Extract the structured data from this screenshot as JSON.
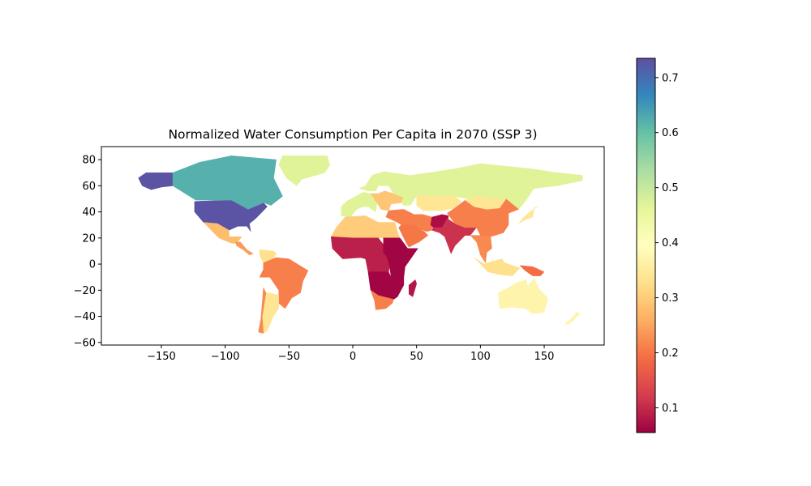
{
  "chart_data": {
    "type": "choropleth",
    "title": "Normalized Water Consumption Per Capita in 2070 (SSP 3)",
    "xlim": [
      -197,
      197
    ],
    "ylim": [
      -62,
      90
    ],
    "x_ticks": [
      -150,
      -100,
      -50,
      0,
      50,
      100,
      150
    ],
    "y_ticks": [
      80,
      60,
      40,
      20,
      0,
      -20,
      -40,
      -60
    ],
    "colormap": "Spectral",
    "colorbar": {
      "range": [
        0.055,
        0.735
      ],
      "ticks": [
        0.1,
        0.2,
        0.3,
        0.4,
        0.5,
        0.6,
        0.7
      ],
      "stops": [
        "#9e0142",
        "#d53e4f",
        "#f46d43",
        "#fdae61",
        "#fee08b",
        "#ffffbf",
        "#e6f598",
        "#abdda4",
        "#66c2a5",
        "#3288bd",
        "#5e4fa2"
      ]
    },
    "regions": [
      {
        "name": "Alaska",
        "value": 0.73
      },
      {
        "name": "Contiguous USA",
        "value": 0.73
      },
      {
        "name": "Canada",
        "value": 0.62
      },
      {
        "name": "Greenland",
        "value": 0.47
      },
      {
        "name": "Mexico",
        "value": 0.28
      },
      {
        "name": "Central America",
        "value": 0.24
      },
      {
        "name": "Venezuela",
        "value": 0.33
      },
      {
        "name": "Brazil",
        "value": 0.21
      },
      {
        "name": "Argentina",
        "value": 0.34
      },
      {
        "name": "Chile",
        "value": 0.22
      },
      {
        "name": "Western Europe",
        "value": 0.47
      },
      {
        "name": "Scandinavia",
        "value": 0.47
      },
      {
        "name": "Eastern Europe",
        "value": 0.29
      },
      {
        "name": "Russia",
        "value": 0.47
      },
      {
        "name": "Kazakhstan",
        "value": 0.34
      },
      {
        "name": "North Africa",
        "value": 0.3
      },
      {
        "name": "West Africa",
        "value": 0.09
      },
      {
        "name": "East Africa",
        "value": 0.06
      },
      {
        "name": "Southern Africa",
        "value": 0.06
      },
      {
        "name": "South Africa",
        "value": 0.21
      },
      {
        "name": "Madagascar",
        "value": 0.08
      },
      {
        "name": "Middle East",
        "value": 0.21
      },
      {
        "name": "Saudi Arabia",
        "value": 0.2
      },
      {
        "name": "Afghanistan",
        "value": 0.07
      },
      {
        "name": "India",
        "value": 0.11
      },
      {
        "name": "China",
        "value": 0.21
      },
      {
        "name": "Mongolia",
        "value": 0.34
      },
      {
        "name": "Southeast Asia",
        "value": 0.22
      },
      {
        "name": "Indonesia",
        "value": 0.33
      },
      {
        "name": "Papua New Guinea",
        "value": 0.19
      },
      {
        "name": "Australia",
        "value": 0.37
      },
      {
        "name": "New Zealand",
        "value": 0.37
      },
      {
        "name": "Japan",
        "value": 0.34
      }
    ]
  }
}
